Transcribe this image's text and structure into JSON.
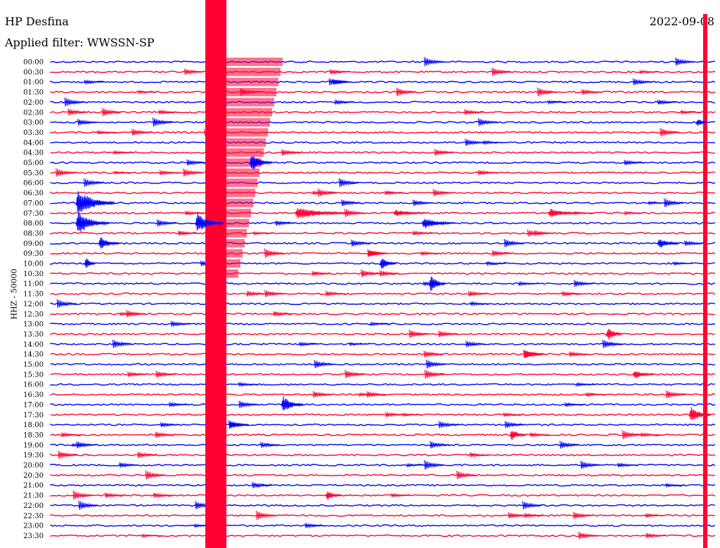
{
  "header": {
    "station": "HP Desfina",
    "date": "2022-09-08",
    "filter": "Applied filter: WWSSN-SP",
    "channel": "HHZ - 50000"
  },
  "colors": {
    "trace_a": "#0000ff",
    "trace_b": "#ff0033"
  },
  "chart_data": {
    "type": "line",
    "title": "HP Desfina",
    "subtitle": "Applied filter: WWSSN-SP",
    "ylabel": "HHZ - 50000",
    "xlabel": "",
    "grid": false,
    "rows": [
      "00:00",
      "00:30",
      "01:00",
      "01:30",
      "02:00",
      "02:30",
      "03:00",
      "03:30",
      "04:00",
      "04:30",
      "05:00",
      "05:30",
      "06:00",
      "06:30",
      "07:00",
      "07:30",
      "08:00",
      "08:30",
      "09:00",
      "09:30",
      "10:00",
      "10:30",
      "11:00",
      "11:30",
      "12:00",
      "12:30",
      "13:00",
      "13:30",
      "14:00",
      "14:30",
      "15:00",
      "15:30",
      "16:00",
      "16:30",
      "17:00",
      "17:30",
      "18:00",
      "18:30",
      "19:00",
      "19:30",
      "20:00",
      "20:30",
      "21:00",
      "21:30",
      "22:00",
      "22:30",
      "23:00",
      "23:30"
    ],
    "row_colors": [
      "trace_a",
      "trace_b"
    ]
  }
}
